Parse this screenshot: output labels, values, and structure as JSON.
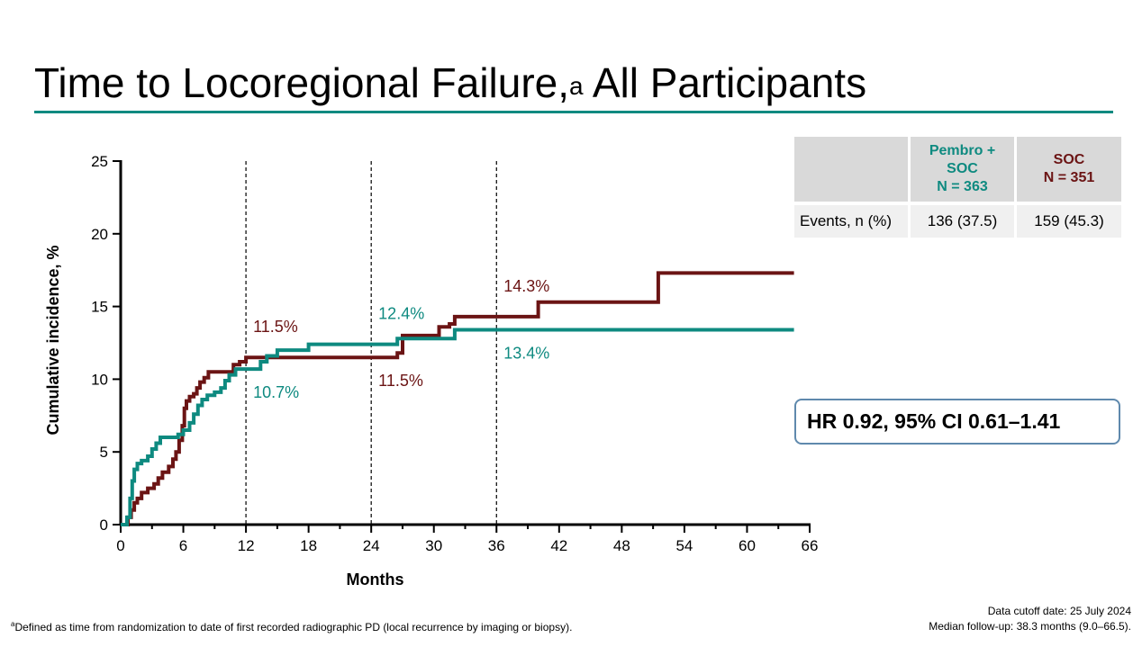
{
  "title": {
    "main": "Time to Locoregional Failure,",
    "superscript": "a",
    "rest": " All Participants"
  },
  "colors": {
    "pembro": "#0e8a80",
    "soc": "#6b1414",
    "rule": "#0e8a80",
    "hr_border": "#5f89ad"
  },
  "table": {
    "headers": [
      "",
      "Pembro +\nSOC\nN = 363",
      "SOC\nN = 351"
    ],
    "rows": [
      {
        "label": "Events, n (%)",
        "pembro": "136 (37.5)",
        "soc": "159 (45.3)"
      }
    ]
  },
  "hr_text": "HR 0.92, 95% CI 0.61–1.41",
  "footnote": {
    "mark": "a",
    "text": "Defined as time from randomization to date of first recorded radiographic PD (local recurrence by imaging or biopsy)."
  },
  "cutoff": {
    "line1": "Data cutoff date: 25 July 2024",
    "line2": "Median follow-up: 38.3 months (9.0–66.5)."
  },
  "chart_data": {
    "type": "line",
    "xlabel": "Months",
    "ylabel": "Cumulative incidence, %",
    "xlim": [
      0,
      66
    ],
    "ylim": [
      0,
      25
    ],
    "xticks": [
      0,
      6,
      12,
      18,
      24,
      30,
      36,
      42,
      48,
      54,
      60,
      66
    ],
    "yticks": [
      0,
      5,
      10,
      15,
      20,
      25
    ],
    "reference_lines_x": [
      12,
      24,
      36
    ],
    "series": [
      {
        "key": "soc",
        "x": [
          0,
          0.7,
          1.0,
          1.3,
          1.6,
          2.0,
          2.6,
          3.2,
          3.6,
          4.0,
          4.6,
          5.0,
          5.3,
          5.6,
          5.9,
          6.1,
          6.3,
          6.6,
          7.0,
          7.3,
          7.6,
          8.0,
          8.4,
          9.0,
          10.0,
          10.8,
          11.4,
          12.0,
          13.0,
          14.0,
          18.0,
          24.0,
          26.5,
          27.0,
          30.0,
          30.5,
          31.5,
          32.0,
          36.0,
          39.5,
          40.0,
          51.0,
          51.5,
          64.5
        ],
        "y": [
          0,
          0.5,
          1.0,
          1.5,
          1.8,
          2.2,
          2.5,
          2.8,
          3.2,
          3.6,
          4.0,
          4.5,
          5.0,
          5.8,
          6.8,
          8.0,
          8.5,
          8.8,
          9.0,
          9.4,
          9.8,
          10.1,
          10.5,
          10.5,
          10.5,
          11.0,
          11.2,
          11.5,
          11.5,
          11.5,
          11.5,
          11.5,
          11.8,
          13.0,
          13.0,
          13.6,
          13.8,
          14.3,
          14.3,
          14.3,
          15.3,
          15.3,
          17.3,
          17.3
        ]
      },
      {
        "key": "pembro",
        "x": [
          0,
          0.6,
          0.9,
          1.1,
          1.3,
          1.6,
          2.0,
          2.6,
          3.0,
          3.4,
          3.8,
          4.4,
          5.0,
          5.5,
          6.0,
          6.6,
          7.0,
          7.4,
          7.8,
          8.3,
          9.0,
          9.6,
          10.0,
          10.4,
          11.0,
          12.0,
          13.4,
          14.0,
          15.0,
          18.0,
          24.0,
          25.5,
          26.5,
          32.0,
          36.0,
          64.5
        ],
        "y": [
          0,
          0.5,
          1.8,
          3.0,
          3.8,
          4.2,
          4.4,
          4.7,
          5.2,
          5.6,
          6.0,
          6.0,
          6.0,
          6.2,
          6.5,
          7.0,
          7.6,
          8.2,
          8.6,
          8.9,
          9.1,
          9.4,
          9.9,
          10.3,
          10.7,
          10.7,
          11.2,
          11.6,
          12.0,
          12.4,
          12.4,
          12.4,
          12.8,
          13.4,
          13.4,
          13.4
        ]
      }
    ],
    "annotations": [
      {
        "text": "11.5%",
        "series": "soc",
        "x": 12,
        "y": 11.5,
        "pos": "above"
      },
      {
        "text": "10.7%",
        "series": "pembro",
        "x": 12,
        "y": 10.7,
        "pos": "below"
      },
      {
        "text": "12.4%",
        "series": "pembro",
        "x": 24,
        "y": 12.4,
        "pos": "above"
      },
      {
        "text": "11.5%",
        "series": "soc",
        "x": 24,
        "y": 11.5,
        "pos": "below"
      },
      {
        "text": "14.3%",
        "series": "soc",
        "x": 36,
        "y": 14.3,
        "pos": "above"
      },
      {
        "text": "13.4%",
        "series": "pembro",
        "x": 36,
        "y": 13.4,
        "pos": "below"
      }
    ]
  }
}
